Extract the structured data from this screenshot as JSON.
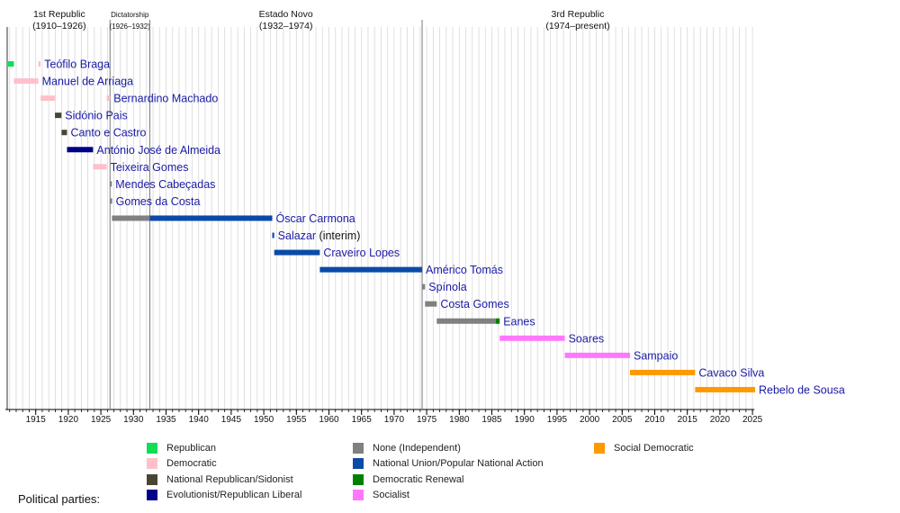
{
  "chart_data": {
    "type": "timeline",
    "x_axis": {
      "range": [
        1910,
        2026
      ],
      "tick_labels": [
        1915,
        1920,
        1925,
        1930,
        1935,
        1940,
        1945,
        1950,
        1955,
        1960,
        1965,
        1970,
        1975,
        1980,
        1985,
        1990,
        1995,
        2000,
        2005,
        2010,
        2015,
        2020,
        2025
      ],
      "minor_ticks": "yearly",
      "grid": true
    },
    "eras": [
      {
        "name": "1st Republic",
        "span_label": "(1910–1926)",
        "start": 1910,
        "end": 1926.4
      },
      {
        "name": "Dictatorship",
        "span_label": "(1926–1932)",
        "start": 1926.4,
        "end": 1932.5,
        "small": true
      },
      {
        "name": "Estado Novo",
        "span_label": "(1932–1974)",
        "start": 1932.5,
        "end": 1974.3
      },
      {
        "name": "3rd Republic",
        "span_label": "(1974–present)",
        "start": 1974.3,
        "end": 2026
      }
    ],
    "parties": [
      {
        "name": "Republican",
        "color": "#11dd55"
      },
      {
        "name": "Democratic",
        "color": "#ffc0cb"
      },
      {
        "name": "National Republican/Sidonist",
        "color": "#4a4533"
      },
      {
        "name": "Evolutionist/Republican Liberal",
        "color": "#000088"
      },
      {
        "name": "None (Independent)",
        "color": "#808080"
      },
      {
        "name": "National Union/Popular National Action",
        "color": "#0a4aa8"
      },
      {
        "name": "Democratic Renewal",
        "color": "#008000"
      },
      {
        "name": "Socialist",
        "color": "#ff77ff"
      },
      {
        "name": "Social Democratic",
        "color": "#ff9900"
      }
    ],
    "presidents": [
      {
        "name": "Teófilo Braga",
        "terms": [
          [
            1910.76,
            1911.65,
            0
          ],
          [
            1915.4,
            1915.75,
            1
          ]
        ]
      },
      {
        "name": "Manuel de Arriaga",
        "terms": [
          [
            1911.65,
            1915.4,
            1
          ]
        ]
      },
      {
        "name": "Bernardino Machado",
        "terms": [
          [
            1915.75,
            1917.95,
            1
          ],
          [
            1925.9,
            1926.4,
            1
          ]
        ]
      },
      {
        "name": "Sidónio Pais",
        "terms": [
          [
            1917.95,
            1918.95,
            2
          ]
        ]
      },
      {
        "name": "Canto e Castro",
        "terms": [
          [
            1918.96,
            1919.8,
            2
          ]
        ]
      },
      {
        "name": "António José de Almeida",
        "terms": [
          [
            1919.8,
            1923.8,
            3
          ]
        ]
      },
      {
        "name": "Teixeira Gomes",
        "terms": [
          [
            1923.8,
            1925.9,
            1
          ]
        ]
      },
      {
        "name": "Mendes Cabeçadas",
        "terms": [
          [
            1926.4,
            1926.46,
            4
          ]
        ]
      },
      {
        "name": "Gomes da Costa",
        "terms": [
          [
            1926.46,
            1926.7,
            4
          ]
        ]
      },
      {
        "name": "Óscar Carmona",
        "terms": [
          [
            1926.7,
            1932.5,
            4
          ],
          [
            1932.5,
            1951.3,
            5
          ]
        ]
      },
      {
        "name": "Salazar",
        "suffix": "(interim)",
        "terms": [
          [
            1951.3,
            1951.6,
            5
          ]
        ]
      },
      {
        "name": "Craveiro Lopes",
        "terms": [
          [
            1951.6,
            1958.6,
            5
          ]
        ]
      },
      {
        "name": "Américo Tomás",
        "terms": [
          [
            1958.6,
            1974.3,
            5
          ]
        ]
      },
      {
        "name": "Spínola",
        "terms": [
          [
            1974.3,
            1974.75,
            4
          ]
        ]
      },
      {
        "name": "Costa Gomes",
        "terms": [
          [
            1974.75,
            1976.55,
            4
          ]
        ]
      },
      {
        "name": "Eanes",
        "terms": [
          [
            1976.55,
            1985.6,
            4
          ],
          [
            1985.6,
            1986.2,
            6
          ]
        ]
      },
      {
        "name": "Soares",
        "terms": [
          [
            1986.2,
            1996.2,
            7
          ]
        ]
      },
      {
        "name": "Sampaio",
        "terms": [
          [
            1996.2,
            2006.2,
            7
          ]
        ]
      },
      {
        "name": "Cavaco Silva",
        "terms": [
          [
            2006.2,
            2016.2,
            8
          ]
        ]
      },
      {
        "name": "Rebelo de Sousa",
        "terms": [
          [
            2016.2,
            2025.4,
            8
          ]
        ]
      }
    ]
  },
  "legend": {
    "title": "Political parties:"
  }
}
